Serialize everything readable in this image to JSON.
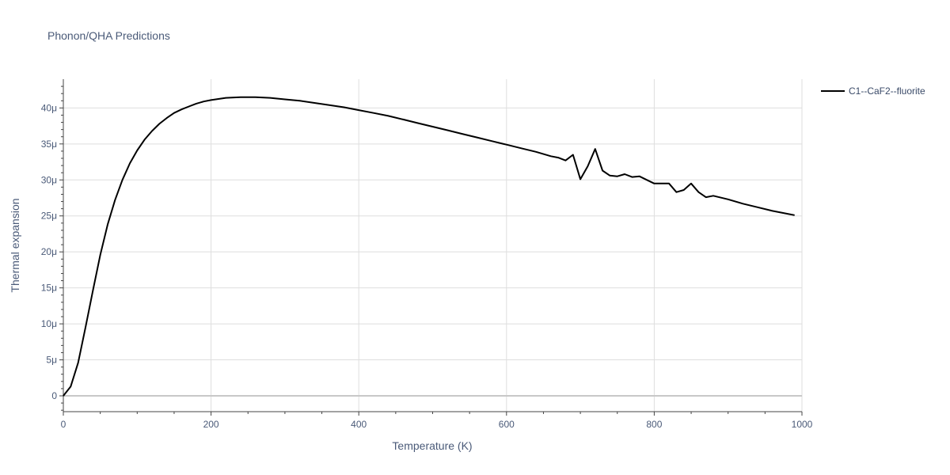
{
  "chart_data": {
    "type": "line",
    "title": "Phonon/QHA Predictions",
    "xlabel": "Temperature (K)",
    "ylabel": "Thermal expansion",
    "xlim": [
      0,
      1000
    ],
    "ylim": [
      -2.2,
      44
    ],
    "x_ticks": [
      0,
      200,
      400,
      600,
      800,
      1000
    ],
    "x_tick_labels": [
      "0",
      "200",
      "400",
      "600",
      "800",
      "1000"
    ],
    "y_ticks": [
      0,
      5,
      10,
      15,
      20,
      25,
      30,
      35,
      40
    ],
    "y_tick_labels": [
      "0",
      "5μ",
      "10μ",
      "15μ",
      "20μ",
      "25μ",
      "30μ",
      "35μ",
      "40μ"
    ],
    "y_unit": "μ (×1e-6)",
    "grid": true,
    "legend_position": "right",
    "series": [
      {
        "name": "C1--CaF2--fluorite",
        "color": "#000000",
        "x": [
          0,
          10,
          20,
          30,
          40,
          50,
          60,
          70,
          80,
          90,
          100,
          110,
          120,
          130,
          140,
          150,
          160,
          170,
          180,
          190,
          200,
          220,
          240,
          250,
          260,
          280,
          300,
          320,
          340,
          360,
          380,
          400,
          420,
          440,
          460,
          480,
          500,
          520,
          540,
          560,
          580,
          600,
          620,
          640,
          660,
          670,
          680,
          690,
          700,
          710,
          720,
          730,
          740,
          750,
          760,
          770,
          780,
          790,
          800,
          810,
          820,
          830,
          840,
          850,
          860,
          870,
          880,
          900,
          920,
          940,
          960,
          980,
          990
        ],
        "y": [
          0,
          1.3,
          4.6,
          9.5,
          14.6,
          19.6,
          23.8,
          27.2,
          30.0,
          32.3,
          34.1,
          35.6,
          36.8,
          37.8,
          38.6,
          39.3,
          39.8,
          40.2,
          40.6,
          40.9,
          41.1,
          41.4,
          41.5,
          41.5,
          41.5,
          41.4,
          41.2,
          41.0,
          40.7,
          40.4,
          40.1,
          39.7,
          39.3,
          38.9,
          38.4,
          37.9,
          37.4,
          36.9,
          36.4,
          35.9,
          35.4,
          34.9,
          34.4,
          33.9,
          33.3,
          33.1,
          32.7,
          33.5,
          30.1,
          31.9,
          34.3,
          31.3,
          30.6,
          30.5,
          30.8,
          30.4,
          30.5,
          30.0,
          29.5,
          29.5,
          29.5,
          28.3,
          28.6,
          29.5,
          28.3,
          27.6,
          27.8,
          27.3,
          26.7,
          26.2,
          25.7,
          25.3,
          25.1
        ]
      }
    ]
  }
}
